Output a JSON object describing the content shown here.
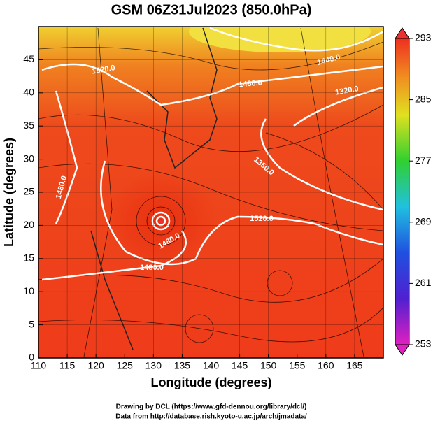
{
  "title": "GSM 06Z31Jul2023 (850.0hPa)",
  "map": {
    "x_label": "Longitude (degrees)",
    "y_label": "Latitude  (degrees)",
    "xlim": [
      110,
      170
    ],
    "ylim": [
      0,
      50
    ],
    "xticks": [
      110,
      115,
      120,
      125,
      130,
      135,
      140,
      145,
      150,
      155,
      160,
      165
    ],
    "yticks": [
      0,
      5,
      10,
      15,
      20,
      25,
      30,
      35,
      40,
      45
    ],
    "contour_labels": [
      "1520.0",
      "1480.0",
      "1440.0",
      "1320.0",
      "1350.0",
      "1520.0",
      "1480.0",
      "1480.0",
      "1480.0"
    ]
  },
  "colorbar": {
    "lim": [
      253,
      293
    ],
    "ticks": [
      253,
      261,
      269,
      277,
      285,
      293
    ]
  },
  "credits": [
    "Drawing by DCL (https://www.gfd-dennou.org/library/dcl/)",
    "Data from http://database.rish.kyoto-u.ac.jp/arch/jmadata/"
  ]
}
